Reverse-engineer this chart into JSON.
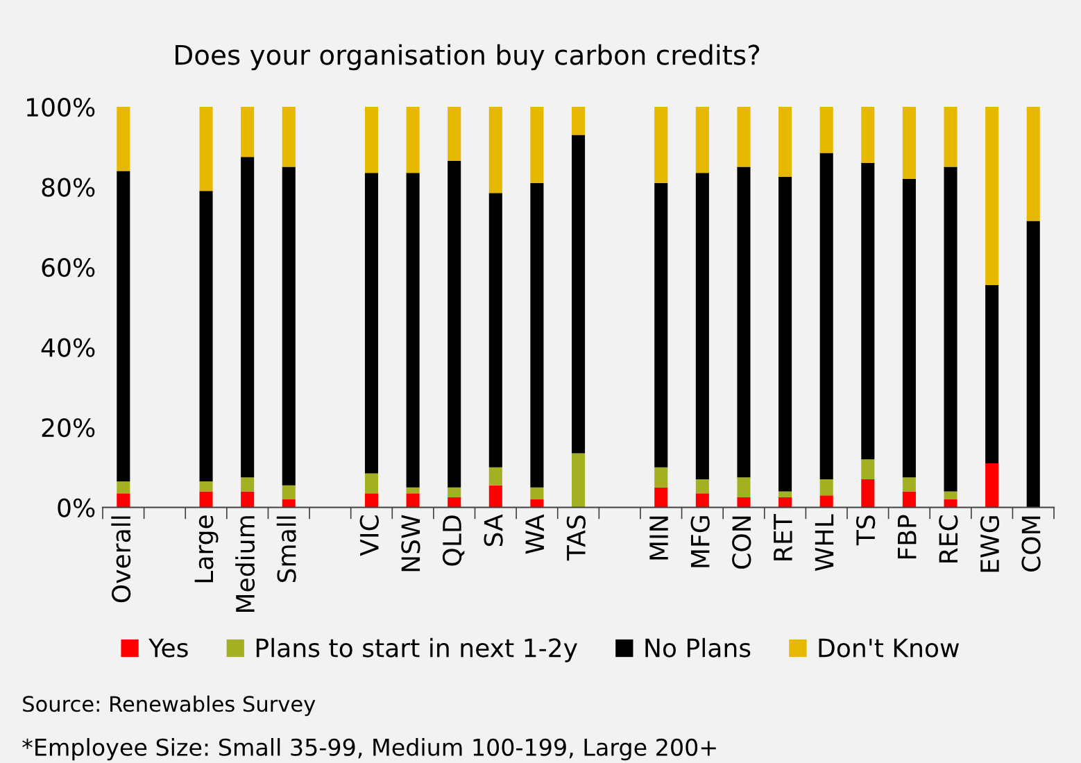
{
  "chart_data": {
    "type": "bar",
    "stacked": true,
    "title": "Does your organisation buy carbon credits?",
    "categories": [
      "Overall",
      null,
      "Large",
      "Medium",
      "Small",
      null,
      "VIC",
      "NSW",
      "QLD",
      "SA",
      "WA",
      "TAS",
      null,
      "MIN",
      "MFG",
      "CON",
      "RET",
      "WHL",
      "TS",
      "FBP",
      "REC",
      "EWG",
      "COM"
    ],
    "series": [
      {
        "name": "Yes",
        "color": "#ff0000",
        "values": [
          3.5,
          null,
          4,
          4,
          2,
          null,
          3.5,
          3.5,
          2.5,
          5.5,
          2,
          0,
          null,
          5,
          3.5,
          2.5,
          2.5,
          3,
          7,
          4,
          2,
          11,
          0
        ]
      },
      {
        "name": "Plans to start in next 1-2y",
        "color": "#a2b022",
        "values": [
          3,
          null,
          2.5,
          3.5,
          3.5,
          null,
          5,
          1.5,
          2.5,
          4.5,
          3,
          13.5,
          null,
          5,
          3.5,
          5,
          1.5,
          4,
          5,
          3.5,
          2,
          0,
          0
        ]
      },
      {
        "name": "No Plans",
        "color": "#000000",
        "values": [
          77.5,
          null,
          72.5,
          80,
          79.5,
          null,
          75,
          78.5,
          81.5,
          68.5,
          76,
          79.5,
          null,
          71,
          76.5,
          77.5,
          78.5,
          81.5,
          74,
          74.5,
          81,
          44.5,
          71.5
        ]
      },
      {
        "name": "Don't Know",
        "color": "#e6b800",
        "values": [
          16,
          null,
          21,
          12.5,
          15,
          null,
          16.5,
          16.5,
          13.5,
          21.5,
          19,
          7,
          null,
          19,
          16.5,
          15,
          17.5,
          11.5,
          14,
          18,
          15,
          44.5,
          28.5
        ]
      }
    ],
    "ylim": [
      0,
      100
    ],
    "yticks": [
      {
        "value": 0,
        "label": "0%"
      },
      {
        "value": 20,
        "label": "20%"
      },
      {
        "value": 40,
        "label": "40%"
      },
      {
        "value": 60,
        "label": "60%"
      },
      {
        "value": 80,
        "label": "80%"
      },
      {
        "value": 100,
        "label": "100%"
      }
    ],
    "grid": false,
    "legend": "bottom",
    "annotations": [
      "Source: Renewables Survey",
      "*Employee Size: Small 35-99, Medium 100-199, Large 200+"
    ]
  }
}
